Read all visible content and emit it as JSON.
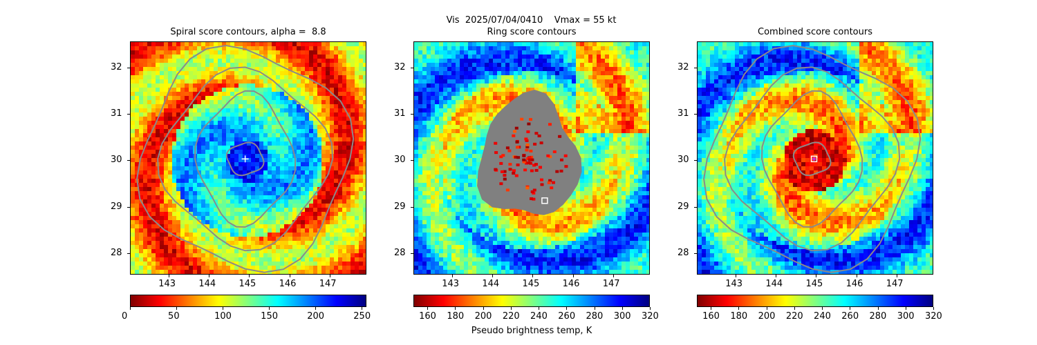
{
  "suptitle": "Vis  2025/07/04/0410    Vmax = 55 kt",
  "chart_data": [
    {
      "type": "heatmap",
      "title": "Spiral score contours, alpha =  8.8",
      "xlim": [
        142.05,
        147.9
      ],
      "ylim": [
        27.55,
        32.55
      ],
      "xticks": [
        143,
        144,
        145,
        146,
        147
      ],
      "yticks": [
        28,
        29,
        30,
        31,
        32
      ],
      "colorbar": {
        "range": [
          0,
          255
        ],
        "ticks": [
          0,
          50,
          100,
          150,
          200,
          250
        ],
        "colormap": "jet_r"
      },
      "center_marker": {
        "symbol": "plus",
        "x": 144.9,
        "y": 30.03,
        "color": "#ffffff"
      },
      "contour_color": "#8a8a8a"
    },
    {
      "type": "heatmap",
      "title": "Ring score contours",
      "xlim": [
        142.05,
        147.9
      ],
      "ylim": [
        27.55,
        32.55
      ],
      "xticks": [
        143,
        144,
        145,
        146,
        147
      ],
      "yticks": [
        28,
        29,
        30,
        31,
        32
      ],
      "colorbar": {
        "range": [
          150,
          320
        ],
        "ticks": [
          160,
          180,
          200,
          220,
          240,
          260,
          280,
          300,
          320
        ],
        "colormap": "jet_r",
        "label": "Pseudo brightness temp, K"
      },
      "center_marker": {
        "symbol": "square",
        "x": 145.3,
        "y": 29.13,
        "color": "#ffffff"
      },
      "mask_color": "#808080"
    },
    {
      "type": "heatmap",
      "title": "Combined score contours",
      "xlim": [
        142.05,
        147.9
      ],
      "ylim": [
        27.55,
        32.55
      ],
      "xticks": [
        143,
        144,
        145,
        146,
        147
      ],
      "yticks": [
        28,
        29,
        30,
        31,
        32
      ],
      "colorbar": {
        "range": [
          150,
          320
        ],
        "ticks": [
          160,
          180,
          200,
          220,
          240,
          260,
          280,
          300,
          320
        ],
        "colormap": "jet_r"
      },
      "center_marker": {
        "symbol": "square-plus",
        "x": 144.95,
        "y": 30.03,
        "color": "#ffffff",
        "inner_color": "#cc33cc"
      },
      "contour_color": "#8a8a8a"
    }
  ]
}
